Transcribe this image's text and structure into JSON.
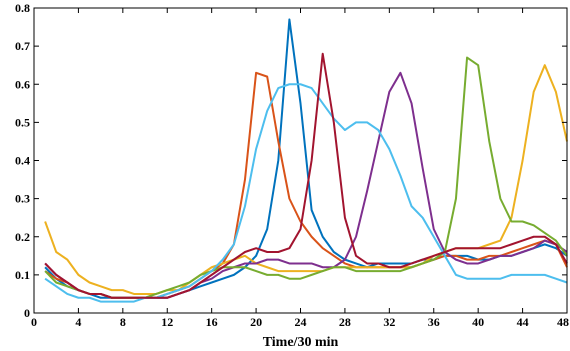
{
  "chart_data": {
    "type": "line",
    "title": "",
    "xlabel": "Time/30 min",
    "ylabel": "",
    "xlim": [
      0,
      48
    ],
    "ylim": [
      0,
      0.8
    ],
    "x_ticks": [
      0,
      4,
      8,
      12,
      16,
      20,
      24,
      28,
      32,
      36,
      40,
      44,
      48
    ],
    "y_ticks": [
      0,
      0.1,
      0.2,
      0.3,
      0.4,
      0.5,
      0.6,
      0.7,
      0.8
    ],
    "x_tick_labels": [
      "0",
      "4",
      "8",
      "12",
      "16",
      "20",
      "24",
      "28",
      "32",
      "36",
      "40",
      "44",
      "48"
    ],
    "y_tick_labels": [
      "0",
      "0.1",
      "0.2",
      "0.3",
      "0.4",
      "0.5",
      "0.6",
      "0.7",
      "0.8"
    ],
    "grid": false,
    "legend": "none",
    "x": [
      1,
      2,
      3,
      4,
      5,
      6,
      7,
      8,
      9,
      10,
      11,
      12,
      13,
      14,
      15,
      16,
      17,
      18,
      19,
      20,
      21,
      22,
      23,
      24,
      25,
      26,
      27,
      28,
      29,
      30,
      31,
      32,
      33,
      34,
      35,
      36,
      37,
      38,
      39,
      40,
      41,
      42,
      43,
      44,
      45,
      46,
      47,
      48
    ],
    "series": [
      {
        "color": "#0072BD",
        "values": [
          0.12,
          0.09,
          0.07,
          0.06,
          0.05,
          0.04,
          0.04,
          0.04,
          0.04,
          0.04,
          0.04,
          0.04,
          0.05,
          0.06,
          0.07,
          0.08,
          0.09,
          0.1,
          0.12,
          0.15,
          0.22,
          0.4,
          0.77,
          0.55,
          0.27,
          0.2,
          0.16,
          0.14,
          0.13,
          0.12,
          0.13,
          0.13,
          0.13,
          0.13,
          0.14,
          0.14,
          0.15,
          0.15,
          0.15,
          0.14,
          0.14,
          0.15,
          0.15,
          0.16,
          0.17,
          0.18,
          0.17,
          0.15
        ]
      },
      {
        "color": "#D95319",
        "values": [
          0.11,
          0.09,
          0.08,
          0.06,
          0.05,
          0.05,
          0.04,
          0.04,
          0.04,
          0.04,
          0.04,
          0.05,
          0.06,
          0.07,
          0.09,
          0.11,
          0.13,
          0.18,
          0.35,
          0.63,
          0.62,
          0.45,
          0.3,
          0.24,
          0.2,
          0.17,
          0.15,
          0.13,
          0.12,
          0.12,
          0.12,
          0.12,
          0.12,
          0.12,
          0.13,
          0.14,
          0.15,
          0.15,
          0.14,
          0.14,
          0.15,
          0.15,
          0.16,
          0.17,
          0.18,
          0.19,
          0.18,
          0.12
        ]
      },
      {
        "color": "#EDB120",
        "values": [
          0.24,
          0.16,
          0.14,
          0.1,
          0.08,
          0.07,
          0.06,
          0.06,
          0.05,
          0.05,
          0.05,
          0.06,
          0.06,
          0.08,
          0.1,
          0.12,
          0.13,
          0.14,
          0.15,
          0.13,
          0.12,
          0.11,
          0.11,
          0.11,
          0.11,
          0.11,
          0.12,
          0.12,
          0.12,
          0.12,
          0.12,
          0.12,
          0.12,
          0.12,
          0.13,
          0.15,
          0.16,
          0.17,
          0.17,
          0.17,
          0.18,
          0.19,
          0.25,
          0.4,
          0.58,
          0.65,
          0.58,
          0.45
        ]
      },
      {
        "color": "#7E2F8E",
        "values": [
          0.13,
          0.1,
          0.08,
          0.06,
          0.05,
          0.05,
          0.04,
          0.04,
          0.04,
          0.04,
          0.04,
          0.04,
          0.05,
          0.06,
          0.08,
          0.09,
          0.11,
          0.12,
          0.13,
          0.13,
          0.14,
          0.14,
          0.13,
          0.13,
          0.13,
          0.12,
          0.12,
          0.14,
          0.2,
          0.32,
          0.45,
          0.58,
          0.63,
          0.55,
          0.38,
          0.22,
          0.16,
          0.14,
          0.13,
          0.13,
          0.14,
          0.15,
          0.15,
          0.16,
          0.17,
          0.19,
          0.18,
          0.16
        ]
      },
      {
        "color": "#77AC30",
        "values": [
          0.11,
          0.08,
          0.07,
          0.06,
          0.05,
          0.05,
          0.04,
          0.04,
          0.04,
          0.04,
          0.05,
          0.06,
          0.07,
          0.08,
          0.1,
          0.11,
          0.12,
          0.12,
          0.12,
          0.11,
          0.1,
          0.1,
          0.09,
          0.09,
          0.1,
          0.11,
          0.12,
          0.12,
          0.11,
          0.11,
          0.11,
          0.11,
          0.11,
          0.12,
          0.13,
          0.14,
          0.16,
          0.3,
          0.67,
          0.65,
          0.45,
          0.3,
          0.24,
          0.24,
          0.23,
          0.21,
          0.19,
          0.15
        ]
      },
      {
        "color": "#4DBEEE",
        "values": [
          0.09,
          0.07,
          0.05,
          0.04,
          0.04,
          0.03,
          0.03,
          0.03,
          0.03,
          0.04,
          0.04,
          0.05,
          0.06,
          0.07,
          0.09,
          0.11,
          0.14,
          0.18,
          0.28,
          0.43,
          0.53,
          0.59,
          0.6,
          0.6,
          0.59,
          0.55,
          0.51,
          0.48,
          0.5,
          0.5,
          0.48,
          0.43,
          0.36,
          0.28,
          0.25,
          0.2,
          0.15,
          0.1,
          0.09,
          0.09,
          0.09,
          0.09,
          0.1,
          0.1,
          0.1,
          0.1,
          0.09,
          0.08
        ]
      },
      {
        "color": "#A2142F",
        "values": [
          0.13,
          0.1,
          0.08,
          0.06,
          0.05,
          0.05,
          0.04,
          0.04,
          0.04,
          0.04,
          0.04,
          0.04,
          0.05,
          0.06,
          0.08,
          0.1,
          0.12,
          0.14,
          0.16,
          0.17,
          0.16,
          0.16,
          0.17,
          0.22,
          0.4,
          0.68,
          0.5,
          0.25,
          0.15,
          0.13,
          0.13,
          0.12,
          0.12,
          0.13,
          0.14,
          0.15,
          0.16,
          0.17,
          0.17,
          0.17,
          0.17,
          0.17,
          0.18,
          0.19,
          0.2,
          0.2,
          0.18,
          0.13
        ]
      }
    ]
  }
}
